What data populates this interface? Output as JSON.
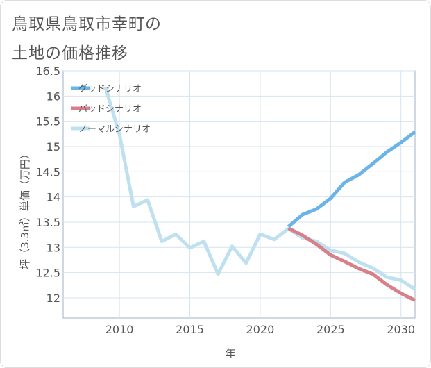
{
  "title": {
    "line1": "鳥取県鳥取市幸町の",
    "line2": "土地の価格推移"
  },
  "chart_data": {
    "type": "line",
    "title": "鳥取県鳥取市幸町の土地の価格推移",
    "xlabel": "年",
    "ylabel": "坪（3.3㎡）単価（万円）",
    "xlim": [
      2006,
      2031
    ],
    "ylim": [
      11.6,
      16.5
    ],
    "xticks": [
      2010,
      2015,
      2020,
      2025,
      2030
    ],
    "yticks": [
      12,
      12.5,
      13,
      13.5,
      14,
      14.5,
      15,
      15.5,
      16,
      16.5
    ],
    "grid": true,
    "legend_position": "top-left",
    "series": [
      {
        "name": "グッドシナリオ",
        "color": "#6ab4e8",
        "x": [
          2022,
          2023,
          2024,
          2025,
          2026,
          2027,
          2028,
          2029,
          2030,
          2031
        ],
        "y": [
          13.41,
          13.65,
          13.76,
          13.97,
          14.29,
          14.44,
          14.66,
          14.89,
          15.08,
          15.29
        ]
      },
      {
        "name": "バッドシナリオ",
        "color": "#d8808a",
        "x": [
          2022,
          2023,
          2024,
          2025,
          2026,
          2027,
          2028,
          2029,
          2030,
          2031
        ],
        "y": [
          13.38,
          13.24,
          13.06,
          12.85,
          12.72,
          12.58,
          12.47,
          12.26,
          12.09,
          11.95
        ]
      },
      {
        "name": "ノーマルシナリオ",
        "color": "#bfe0ee",
        "x": [
          2009,
          2010,
          2011,
          2012,
          2013,
          2014,
          2015,
          2016,
          2017,
          2018,
          2019,
          2020,
          2021,
          2022,
          2023,
          2024,
          2025,
          2026,
          2027,
          2028,
          2029,
          2030,
          2031
        ],
        "y": [
          16.18,
          15.24,
          13.81,
          13.94,
          13.12,
          13.26,
          12.99,
          13.12,
          12.47,
          13.02,
          12.69,
          13.26,
          13.16,
          13.37,
          13.19,
          13.12,
          12.94,
          12.88,
          12.71,
          12.59,
          12.41,
          12.35,
          12.17
        ]
      }
    ]
  }
}
